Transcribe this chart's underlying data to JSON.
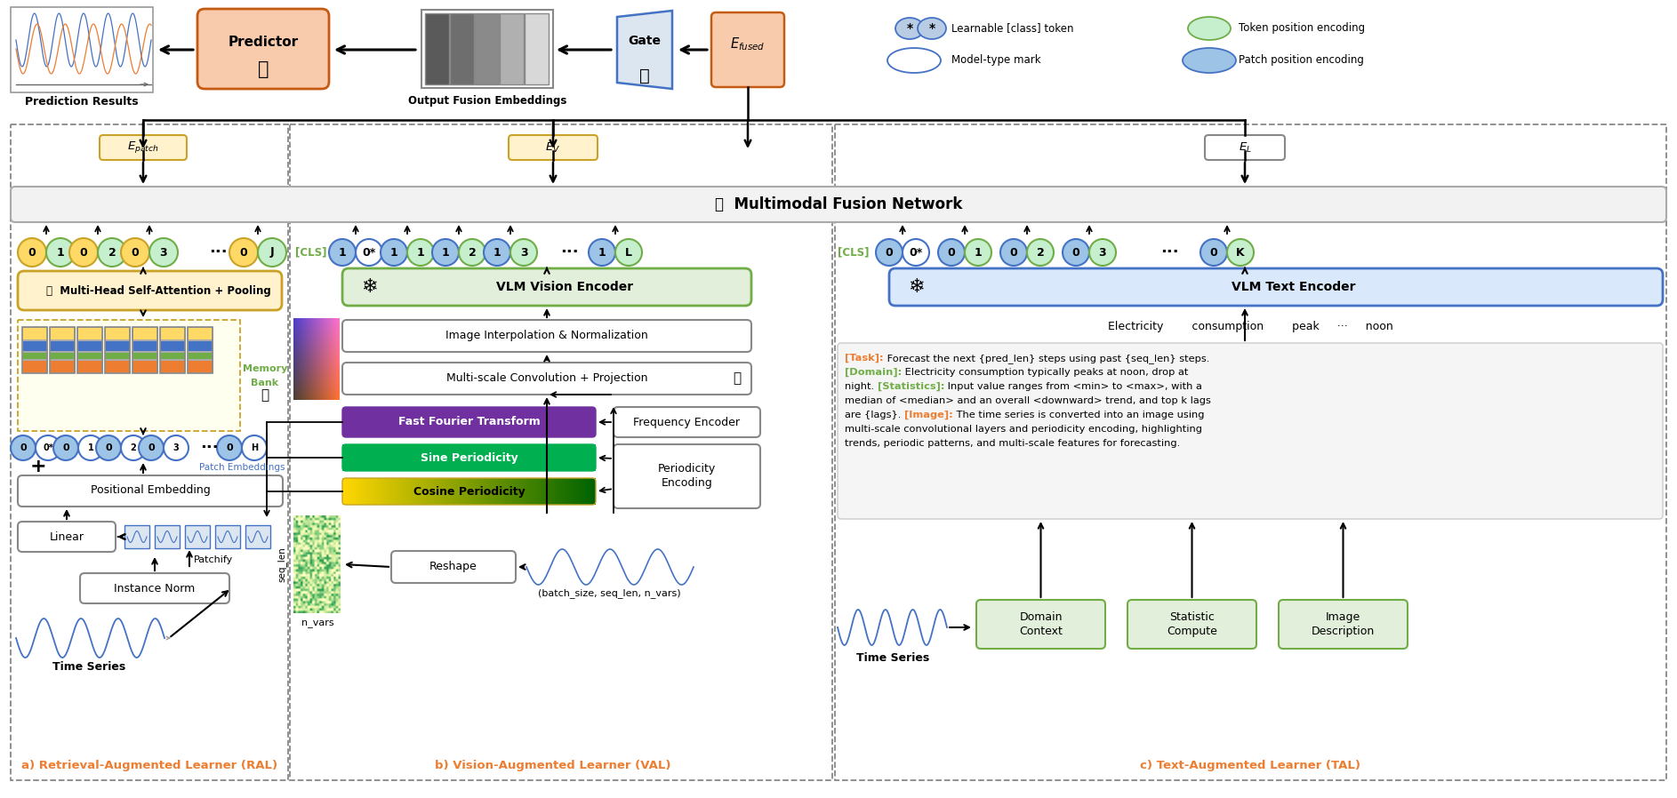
{
  "fig_width": 18.86,
  "fig_height": 8.98,
  "bg_color": "#ffffff",
  "section_labels": [
    "a) Retrieval-Augmented Learner (RAL)",
    "b) Vision-Augmented Learner (VAL)",
    "c) Text-Augmented Learner (TAL)"
  ],
  "colors": {
    "predictor_fill": "#f8cbad",
    "predictor_edge": "#c55a11",
    "gate_fill": "#dce6f1",
    "gate_edge": "#4472c4",
    "efused_fill": "#f8cbad",
    "efused_edge": "#c55a11",
    "mfn_fill": "#f2f2f2",
    "mfn_edge": "#aaaaaa",
    "mhsa_fill": "#fff2cc",
    "mhsa_edge": "#c9a227",
    "vlm_vision_fill": "#e2efda",
    "vlm_vision_edge": "#70ad47",
    "vlm_text_fill": "#dae8fc",
    "vlm_text_edge": "#4472c4",
    "epatch_fill": "#fff2cc",
    "epatch_edge": "#c9a227",
    "ev_fill": "#fff2cc",
    "ev_edge": "#c9a227",
    "el_fill": "#ffffff",
    "el_edge": "#888888",
    "token_yellow": "#ffd966",
    "token_yellow_edge": "#c9a227",
    "token_green": "#c6efce",
    "token_green_edge": "#70ad47",
    "token_blue_light": "#9dc3e6",
    "token_blue_edge": "#4472c4",
    "token_white": "#ffffff",
    "token_white_edge": "#4472c4",
    "memory_fill": "#fff2cc",
    "memory_edge": "#c9a227",
    "fft_fill": "#7030a0",
    "sine_fill": "#00b050",
    "cosine_fill_l": "#ffd966",
    "cosine_fill_r": "#005000",
    "cosine_edge": "#c9a227",
    "desc_fill": "#f5f5f5",
    "desc_edge": "#cccccc",
    "domain_fill": "#e2efda",
    "domain_edge": "#70ad47",
    "box_fill": "#ffffff",
    "box_edge": "#888888",
    "section_border": "#888888",
    "arr": "#000000",
    "orange_label": "#ed7d31",
    "green_label": "#70ad47"
  }
}
